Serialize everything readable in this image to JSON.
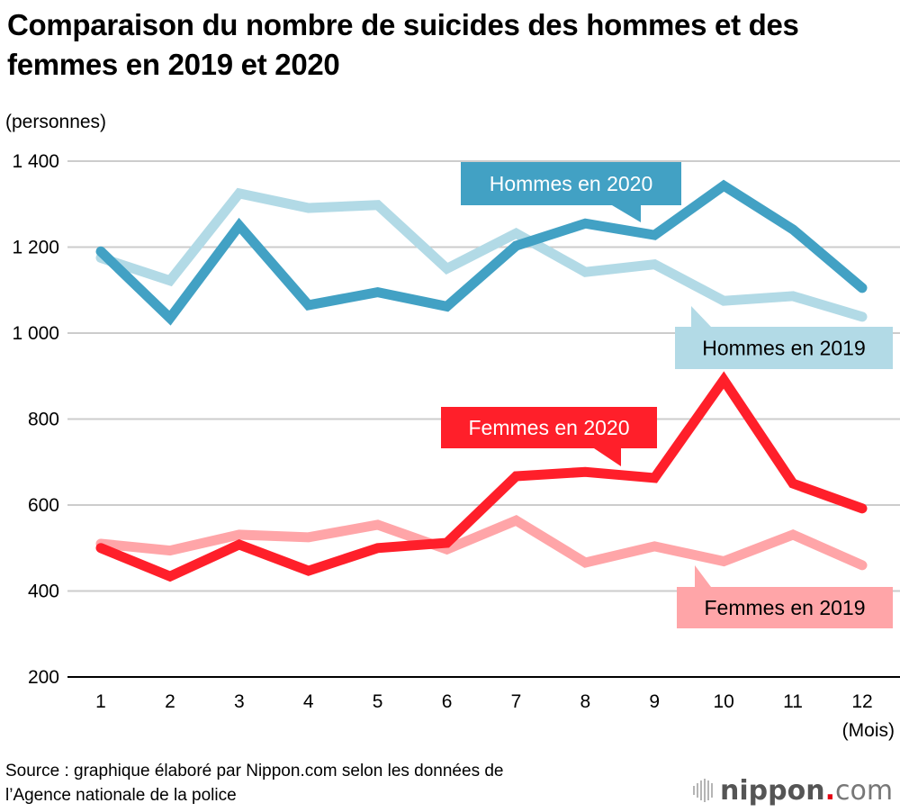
{
  "title": "Comparaison du nombre de suicides des hommes et des femmes en 2019 et 2020",
  "source": {
    "line1": "Source : graphique élaboré par Nippon.com selon les données de",
    "line2": "l’Agence nationale de la police"
  },
  "logo": {
    "name": "nippon",
    "dot": ".",
    "suffix": "com",
    "icon": "sound-wave-icon"
  },
  "chart_data": {
    "type": "line",
    "title": "Comparaison du nombre de suicides des hommes et des femmes en 2019 et 2020",
    "ylabel": "(personnes)",
    "xlabel": "(Mois)",
    "ylim": [
      200,
      1400
    ],
    "yticks": [
      200,
      400,
      600,
      800,
      1000,
      1200,
      1400
    ],
    "ytick_labels": [
      "200",
      "400",
      "600",
      "800",
      "1 000",
      "1 200",
      "1 400"
    ],
    "grid": true,
    "x": [
      1,
      2,
      3,
      4,
      5,
      6,
      7,
      8,
      9,
      10,
      11,
      12
    ],
    "x_labels": [
      "1",
      "2",
      "3",
      "4",
      "5",
      "6",
      "7",
      "8",
      "9",
      "10",
      "11",
      "12"
    ],
    "series": [
      {
        "name": "Hommes en 2019",
        "color": "#B2DAE6",
        "text_color": "#000000",
        "values": [
          1175,
          1122,
          1325,
          1291,
          1298,
          1150,
          1232,
          1142,
          1160,
          1075,
          1086,
          1038
        ]
      },
      {
        "name": "Hommes en 2020",
        "color": "#42A1C4",
        "text_color": "#FFFFFF",
        "values": [
          1190,
          1035,
          1250,
          1065,
          1095,
          1062,
          1203,
          1255,
          1228,
          1343,
          1241,
          1105
        ]
      },
      {
        "name": "Femmes en 2019",
        "color": "#FFA5A8",
        "text_color": "#000000",
        "values": [
          510,
          494,
          531,
          525,
          554,
          497,
          564,
          466,
          504,
          469,
          531,
          460
        ]
      },
      {
        "name": "Femmes en 2020",
        "color": "#FF1F2A",
        "text_color": "#FFFFFF",
        "values": [
          500,
          434,
          508,
          447,
          500,
          512,
          667,
          677,
          663,
          891,
          650,
          592
        ]
      }
    ],
    "legend": "inline callout labels"
  }
}
